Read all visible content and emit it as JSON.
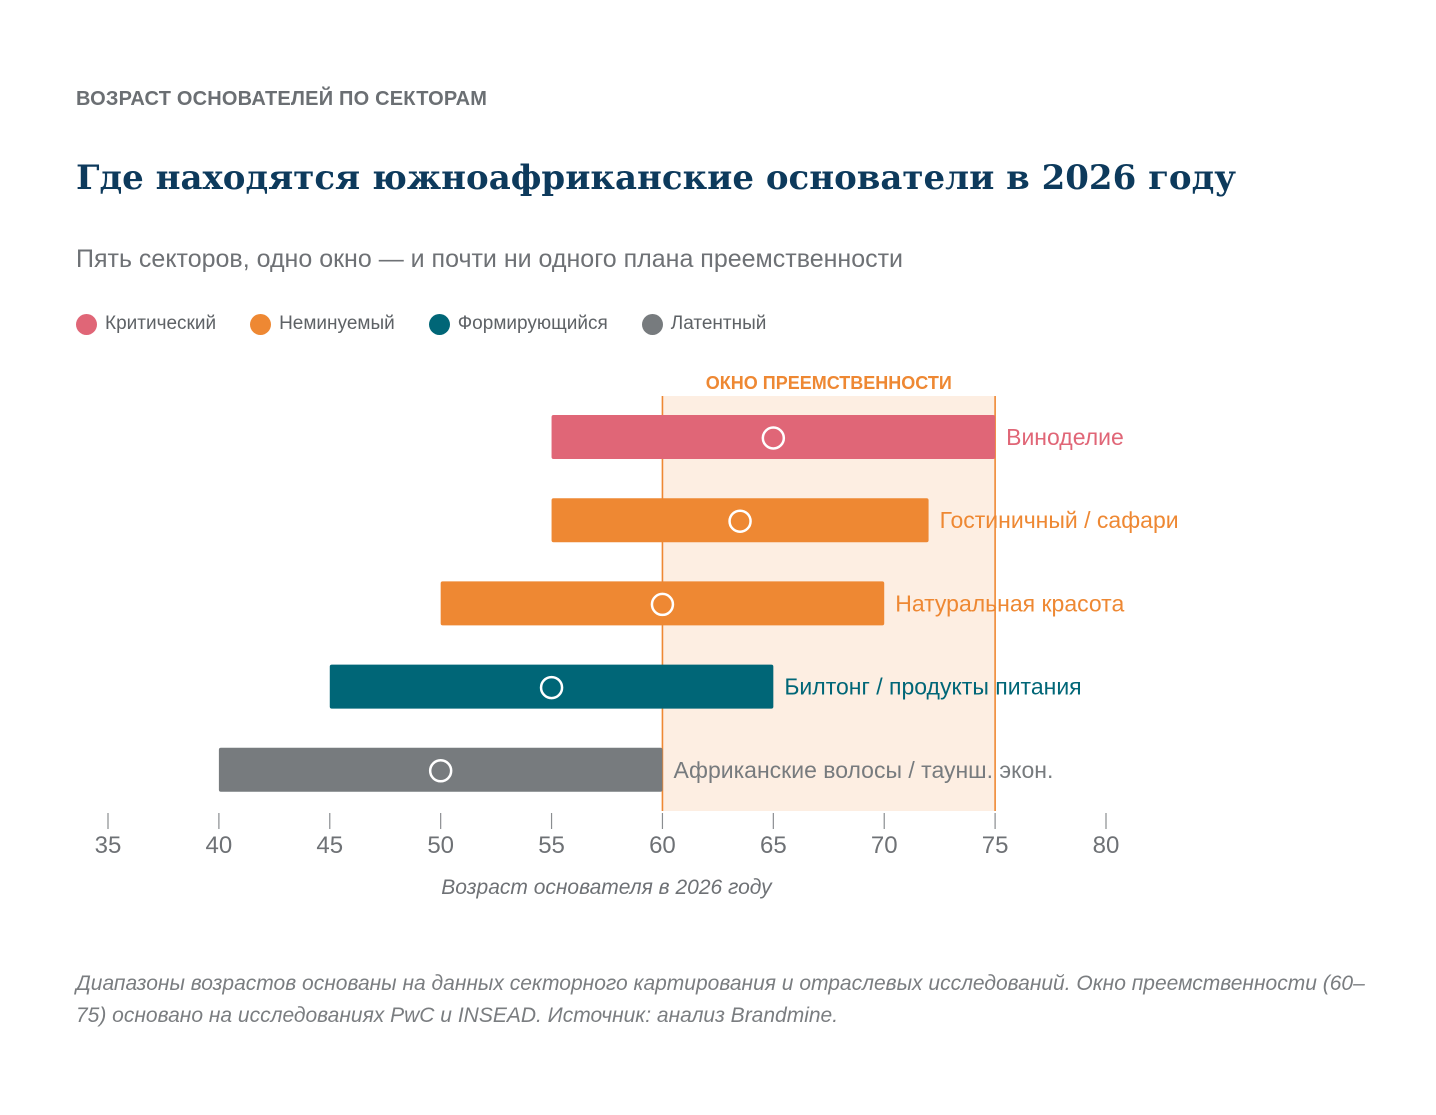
{
  "header": {
    "eyebrow": "ВОЗРАСТ ОСНОВАТЕЛЕЙ ПО СЕКТОРАМ",
    "title": "Где находятся южноафриканские основатели в 2026 году",
    "subtitle": "Пять секторов, одно окно — и почти ни одного плана преемственности"
  },
  "legend": [
    {
      "label": "Критический",
      "color": "#e06677"
    },
    {
      "label": "Неминуемый",
      "color": "#ee8833"
    },
    {
      "label": "Формирующийся",
      "color": "#006677"
    },
    {
      "label": "Латентный",
      "color": "#777b7e"
    }
  ],
  "chart_data": {
    "type": "range-bar",
    "xlabel": "Возраст основателя в 2026 году",
    "xlim": [
      35,
      80
    ],
    "xticks": [
      35,
      40,
      45,
      50,
      55,
      60,
      65,
      70,
      75,
      80
    ],
    "window": {
      "label": "ОКНО ПРЕЕМСТВЕННОСТИ",
      "start": 60,
      "end": 75,
      "color": "#ee8833"
    },
    "series": [
      {
        "category": "Виноделие",
        "min": 55,
        "max": 75,
        "marker": 65,
        "status": "Критический",
        "color": "#e06677"
      },
      {
        "category": "Гостиничный / сафари",
        "min": 55,
        "max": 72,
        "marker": 63.5,
        "status": "Неминуемый",
        "color": "#ee8833"
      },
      {
        "category": "Натуральная красота",
        "min": 50,
        "max": 70,
        "marker": 60,
        "status": "Неминуемый",
        "color": "#ee8833"
      },
      {
        "category": "Билтонг / продукты питания",
        "min": 45,
        "max": 65,
        "marker": 55,
        "status": "Формирующийся",
        "color": "#006677"
      },
      {
        "category": "Африканские волосы / таунш. экон.",
        "min": 40,
        "max": 60,
        "marker": 50,
        "status": "Латентный",
        "color": "#777b7e"
      }
    ]
  },
  "footnote": "Диапазоны возрастов основаны на данных секторного картирования и отраслевых исследований. Окно преемственности (60–75) основано на исследованиях PwC и INSEAD. Источник: анализ Brandmine."
}
